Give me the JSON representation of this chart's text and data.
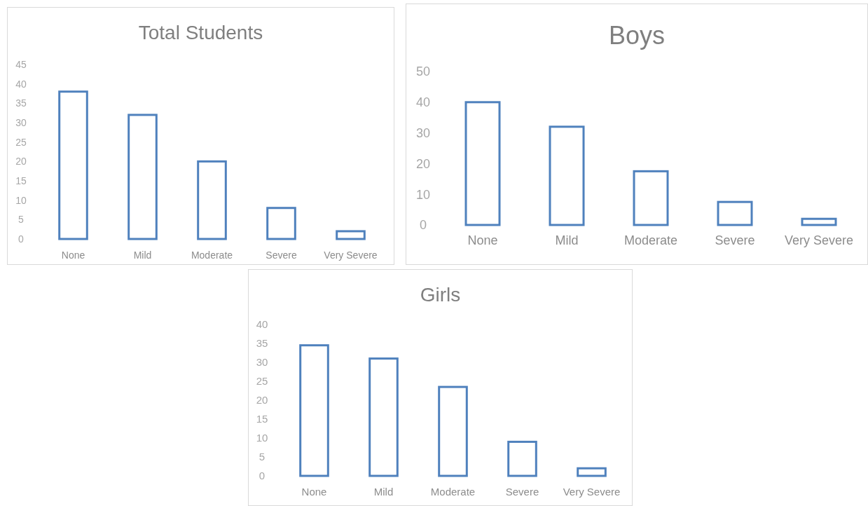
{
  "chart_data": [
    {
      "type": "bar",
      "title": "Total Students",
      "categories": [
        "None",
        "Mild",
        "Moderate",
        "Severe",
        "Very Severe"
      ],
      "values": [
        38,
        32,
        20,
        8,
        2
      ],
      "color": "#4f81bd",
      "ylim": [
        0,
        45
      ],
      "yticks": [
        0,
        5,
        10,
        15,
        20,
        25,
        30,
        35,
        40,
        45
      ],
      "grid": false
    },
    {
      "type": "bar",
      "title": "Boys",
      "categories": [
        "None",
        "Mild",
        "Moderate",
        "Severe",
        "Very Severe"
      ],
      "values": [
        40,
        32,
        17.5,
        7.5,
        2
      ],
      "color": "#4f81bd",
      "ylim": [
        0,
        50
      ],
      "yticks": [
        0,
        10,
        20,
        30,
        40,
        50
      ],
      "grid": false
    },
    {
      "type": "bar",
      "title": "Girls",
      "categories": [
        "None",
        "Mild",
        "Moderate",
        "Severe",
        "Very Severe"
      ],
      "values": [
        34.5,
        31,
        23.5,
        9,
        2
      ],
      "color": "#4f81bd",
      "ylim": [
        0,
        40
      ],
      "yticks": [
        0,
        5,
        10,
        15,
        20,
        25,
        30,
        35,
        40
      ],
      "grid": false
    }
  ]
}
